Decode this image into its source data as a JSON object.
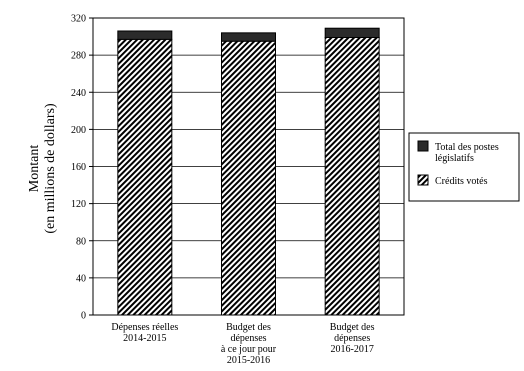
{
  "chart_data": {
    "type": "bar",
    "stacked": true,
    "ylabel": [
      "Montant",
      "(en millions de dollars)"
    ],
    "ylim": [
      0,
      320
    ],
    "yticks": [
      0,
      40,
      80,
      120,
      160,
      200,
      240,
      280,
      320
    ],
    "grid": true,
    "legend_placement": "right",
    "categories": [
      [
        "Dépenses réelles",
        "2014-2015"
      ],
      [
        "Budget des",
        "dépenses",
        "à ce jour pour",
        "2015-2016"
      ],
      [
        "Budget des",
        "dépenses",
        "2016-2017"
      ]
    ],
    "series": [
      {
        "name": "Crédits votés",
        "values": [
          297,
          295,
          299
        ],
        "fill": "hatch",
        "color": "#000000"
      },
      {
        "name": "Total des postes législatifs",
        "values": [
          9,
          9,
          10
        ],
        "fill": "solid",
        "color": "#2b2b2b"
      }
    ],
    "legend": [
      {
        "series": 1,
        "lines": [
          "Total des postes",
          "législatifs"
        ]
      },
      {
        "series": 0,
        "lines": [
          "Crédits votés"
        ]
      }
    ]
  }
}
